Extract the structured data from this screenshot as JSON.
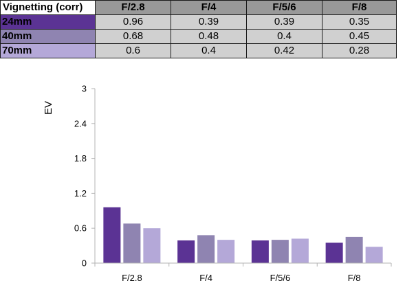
{
  "table": {
    "corner_label": "Vignetting (corr)",
    "columns": [
      "F/2.8",
      "F/4",
      "F/5/6",
      "F/8"
    ],
    "rows": [
      {
        "label": "24mm",
        "values": [
          "0.96",
          "0.39",
          "0.39",
          "0.35"
        ]
      },
      {
        "label": "40mm",
        "values": [
          "0.68",
          "0.48",
          "0.4",
          "0.45"
        ]
      },
      {
        "label": "70mm",
        "values": [
          "0.6",
          "0.4",
          "0.42",
          "0.28"
        ]
      }
    ]
  },
  "chart_data": {
    "type": "bar",
    "title": "",
    "xlabel": "",
    "ylabel": "EV",
    "ylim": [
      0,
      3
    ],
    "yticks": [
      "0",
      "0.6",
      "1.2",
      "1.8",
      "2.4",
      "3"
    ],
    "categories": [
      "F/2.8",
      "F/4",
      "F/5/6",
      "F/8"
    ],
    "series": [
      {
        "name": "24mm",
        "color": "#5b3394",
        "values": [
          0.96,
          0.39,
          0.39,
          0.35
        ]
      },
      {
        "name": "40mm",
        "color": "#8f84b1",
        "values": [
          0.68,
          0.48,
          0.4,
          0.45
        ]
      },
      {
        "name": "70mm",
        "color": "#b4a8d8",
        "values": [
          0.6,
          0.4,
          0.42,
          0.28
        ]
      }
    ],
    "grid": false,
    "legend": "none"
  }
}
